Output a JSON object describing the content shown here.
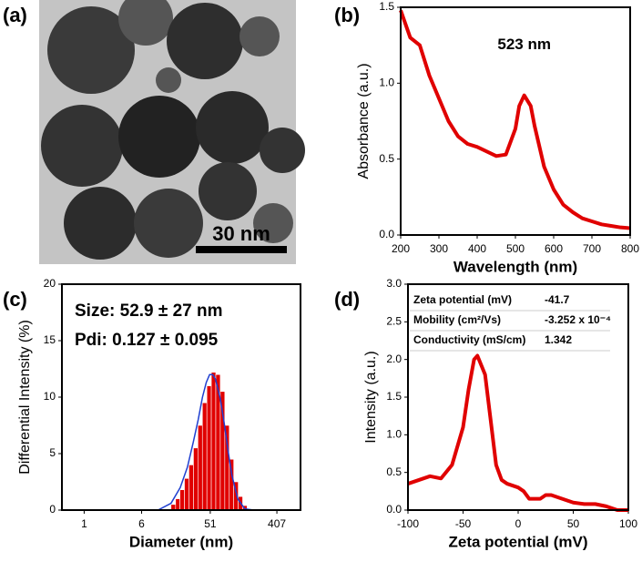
{
  "image": {
    "panel_label": "(a)",
    "scale_bar": "30 nm"
  },
  "chart_data": [
    {
      "type": "line",
      "panel_label": "(b)",
      "xlabel": "Wavelength (nm)",
      "ylabel": "Absorbance (a.u.)",
      "annotation": "523 nm",
      "x": [
        200,
        225,
        250,
        275,
        300,
        325,
        350,
        375,
        400,
        425,
        450,
        475,
        500,
        510,
        523,
        540,
        550,
        575,
        600,
        625,
        650,
        675,
        700,
        725,
        750,
        775,
        800
      ],
      "series": [
        {
          "color": "#e00000",
          "values": [
            1.48,
            1.3,
            1.25,
            1.05,
            0.9,
            0.75,
            0.65,
            0.6,
            0.58,
            0.55,
            0.52,
            0.53,
            0.7,
            0.85,
            0.92,
            0.85,
            0.72,
            0.45,
            0.3,
            0.2,
            0.15,
            0.11,
            0.09,
            0.07,
            0.06,
            0.05,
            0.045
          ]
        }
      ],
      "xlim": [
        200,
        800
      ],
      "xticks": [
        200,
        300,
        400,
        500,
        600,
        700,
        800
      ],
      "ylim": [
        0,
        1.5
      ],
      "yticks": [
        {
          "value": 0,
          "label": "0.0"
        },
        0.5,
        {
          "value": 1,
          "label": "1.0"
        },
        1.5
      ]
    },
    {
      "type": "histogram",
      "panel_label": "(c)",
      "xlabel": "Diameter (nm)",
      "ylabel": "Differential Intensity (%)",
      "annotations": [
        "Size: 52.9 ± 27 nm",
        "Pdi: 0.127 ± 0.095"
      ],
      "xlog": true,
      "bins": [
        15,
        17.3,
        19.8,
        22.8,
        26.2,
        30.2,
        34.7,
        39.9,
        45.9,
        52.7,
        60.6,
        69.7,
        80.2,
        92.2,
        106,
        122,
        140,
        161
      ],
      "values": [
        0.5,
        1,
        1.8,
        2.8,
        4,
        5.5,
        7.5,
        9.5,
        11,
        12.2,
        12,
        10.5,
        7.5,
        4.5,
        2.5,
        1.2,
        0.4
      ],
      "color": "#e00000",
      "fit": {
        "color": "#1f3fd0",
        "x": [
          10,
          15,
          20,
          25,
          30,
          35,
          40,
          45,
          50,
          55,
          60,
          70,
          80,
          90,
          100,
          120,
          150,
          200
        ],
        "values": [
          0,
          0.6,
          2,
          3.8,
          6,
          8,
          10,
          11.3,
          12,
          12,
          11.6,
          9.8,
          7.4,
          5,
          3.1,
          1,
          0.1,
          0
        ]
      },
      "xlim": [
        0.5,
        850
      ],
      "xticks": [
        1,
        6,
        51,
        407
      ],
      "ylim": [
        0,
        20
      ],
      "yticks": [
        0,
        5,
        10,
        15,
        20
      ]
    },
    {
      "type": "line",
      "panel_label": "(d)",
      "xlabel": "Zeta potential (mV)",
      "ylabel": "Intensity (a.u.)",
      "x": [
        -100,
        -90,
        -80,
        -70,
        -60,
        -50,
        -45,
        -40,
        -37,
        -30,
        -25,
        -20,
        -15,
        -10,
        0,
        5,
        10,
        20,
        25,
        30,
        40,
        50,
        60,
        70,
        80,
        90,
        100
      ],
      "series": [
        {
          "color": "#e00000",
          "values": [
            0.35,
            0.4,
            0.45,
            0.42,
            0.6,
            1.1,
            1.6,
            2,
            2.05,
            1.8,
            1.2,
            0.6,
            0.4,
            0.35,
            0.3,
            0.25,
            0.15,
            0.15,
            0.2,
            0.2,
            0.15,
            0.1,
            0.08,
            0.08,
            0.05,
            0,
            0
          ]
        }
      ],
      "xlim": [
        -100,
        100
      ],
      "xticks": [
        -100,
        -50,
        0,
        50,
        100
      ],
      "ylim": [
        0,
        3
      ],
      "yticks": [
        {
          "value": 0,
          "label": "0.0"
        },
        0.5,
        {
          "value": 1,
          "label": "1.0"
        },
        1.5,
        {
          "value": 2,
          "label": "2.0"
        },
        2.5,
        {
          "value": 3,
          "label": "3.0"
        }
      ],
      "table": {
        "rows": [
          [
            "Zeta potential (mV)",
            "-41.7"
          ],
          [
            "Mobility (cm²/Vs)",
            "-3.252 x 10⁻⁴"
          ],
          [
            "Conductivity (mS/cm)",
            "1.342"
          ]
        ]
      }
    }
  ]
}
